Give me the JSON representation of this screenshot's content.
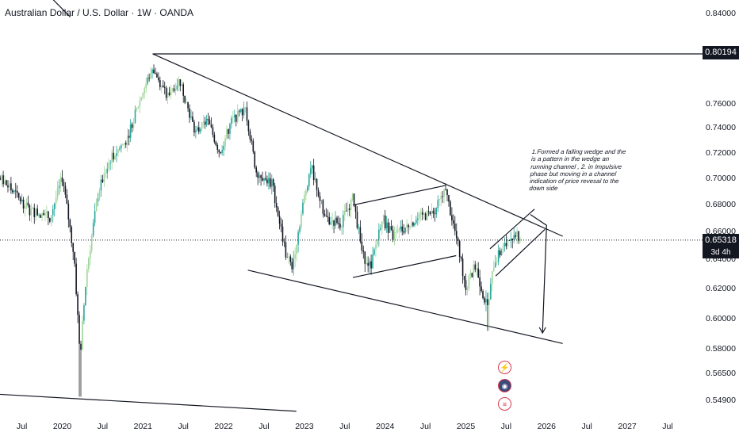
{
  "header": {
    "symbol_title": "Australian Dollar / U.S. Dollar · 1W · OANDA"
  },
  "annotation": {
    "text": "1.Formed a falling wedge and the is a pattern in the wedge an running channel , 2. in Impulsive phase but moving in a channel indication of price revesal to the down side"
  },
  "price_labels": {
    "high_level": "0.80194",
    "current_price": "0.65318",
    "countdown": "3d 4h"
  },
  "icons": [
    "lightning-icon",
    "globe-flag-icon",
    "us-flag-icon"
  ],
  "colors": {
    "up": "#26a69a",
    "up_light": "#9fd59a",
    "down": "#131722",
    "line": "#131722",
    "label_bg": "#131722"
  },
  "chart_data": {
    "type": "candlestick",
    "title": "Australian Dollar / U.S. Dollar · 1W · OANDA",
    "xlabel": "",
    "ylabel": "",
    "y_tick_labels": [
      "0.84000",
      "0.80194",
      "0.76000",
      "0.74000",
      "0.72000",
      "0.70000",
      "0.68000",
      "0.66000",
      "0.65318",
      "0.64000",
      "0.62000",
      "0.60000",
      "0.58000",
      "0.56500",
      "0.54900"
    ],
    "y_ticks": [
      0.84,
      0.76,
      0.74,
      0.72,
      0.7,
      0.68,
      0.66,
      0.64,
      0.62,
      0.6,
      0.58,
      0.565,
      0.549
    ],
    "x_tick_labels": [
      "Jul",
      "2020",
      "Jul",
      "2021",
      "Jul",
      "2022",
      "Jul",
      "2023",
      "Jul",
      "2024",
      "Jul",
      "2025",
      "Jul",
      "2026",
      "Jul",
      "2027",
      "Jul"
    ],
    "x_ticks": [
      2019.5,
      2020.0,
      2020.5,
      2021.0,
      2021.5,
      2022.0,
      2022.5,
      2023.0,
      2023.5,
      2024.0,
      2024.5,
      2025.0,
      2025.5,
      2026.0,
      2026.5,
      2027.0,
      2027.5
    ],
    "price_anchors": [
      [
        2019.0,
        0.715
      ],
      [
        2019.3,
        0.695
      ],
      [
        2019.6,
        0.675
      ],
      [
        2019.85,
        0.67
      ],
      [
        2020.0,
        0.7
      ],
      [
        2020.15,
        0.64
      ],
      [
        2020.22,
        0.574
      ],
      [
        2020.3,
        0.63
      ],
      [
        2020.45,
        0.69
      ],
      [
        2020.6,
        0.715
      ],
      [
        2020.8,
        0.73
      ],
      [
        2021.0,
        0.77
      ],
      [
        2021.12,
        0.79
      ],
      [
        2021.3,
        0.765
      ],
      [
        2021.45,
        0.78
      ],
      [
        2021.65,
        0.735
      ],
      [
        2021.8,
        0.745
      ],
      [
        2021.95,
        0.72
      ],
      [
        2022.1,
        0.745
      ],
      [
        2022.27,
        0.755
      ],
      [
        2022.4,
        0.705
      ],
      [
        2022.6,
        0.695
      ],
      [
        2022.78,
        0.64
      ],
      [
        2022.85,
        0.635
      ],
      [
        2023.0,
        0.685
      ],
      [
        2023.08,
        0.71
      ],
      [
        2023.25,
        0.67
      ],
      [
        2023.45,
        0.665
      ],
      [
        2023.6,
        0.685
      ],
      [
        2023.72,
        0.642
      ],
      [
        2023.83,
        0.635
      ],
      [
        2023.96,
        0.67
      ],
      [
        2024.1,
        0.655
      ],
      [
        2024.3,
        0.665
      ],
      [
        2024.45,
        0.67
      ],
      [
        2024.6,
        0.673
      ],
      [
        2024.75,
        0.69
      ],
      [
        2024.9,
        0.65
      ],
      [
        2025.0,
        0.62
      ],
      [
        2025.12,
        0.635
      ],
      [
        2025.27,
        0.605
      ],
      [
        2025.35,
        0.638
      ],
      [
        2025.5,
        0.65
      ],
      [
        2025.62,
        0.66
      ],
      [
        2025.68,
        0.6532
      ]
    ],
    "current_price": 0.65318,
    "horizontal_line": 0.80194,
    "trendlines": [
      {
        "name": "wedge-upper",
        "points": [
          [
            2021.12,
            0.802
          ],
          [
            2026.2,
            0.656
          ]
        ]
      },
      {
        "name": "wedge-lower",
        "points": [
          [
            2022.3,
            0.632
          ],
          [
            2026.2,
            0.583
          ]
        ]
      },
      {
        "name": "channel-upper-2023",
        "points": [
          [
            2023.6,
            0.679
          ],
          [
            2024.75,
            0.694
          ]
        ]
      },
      {
        "name": "channel-lower-2023",
        "points": [
          [
            2023.6,
            0.627
          ],
          [
            2024.88,
            0.642
          ]
        ]
      },
      {
        "name": "channel-upper-2025",
        "points": [
          [
            2025.3,
            0.647
          ],
          [
            2025.85,
            0.676
          ]
        ]
      },
      {
        "name": "channel-lower-2025",
        "points": [
          [
            2025.37,
            0.628
          ],
          [
            2025.98,
            0.661
          ]
        ]
      },
      {
        "name": "long-term-upper",
        "points": [
          [
            2019.6,
            0.86
          ],
          [
            2020.1,
            0.836
          ]
        ]
      },
      {
        "name": "long-term-lower",
        "points": [
          [
            2018.9,
            0.553
          ],
          [
            2022.9,
            0.542
          ]
        ]
      }
    ],
    "projection_arrow": {
      "points": [
        [
          2025.8,
          0.672
        ],
        [
          2026.0,
          0.664
        ],
        [
          2025.95,
          0.59
        ]
      ]
    },
    "grid": false,
    "legend": "none"
  }
}
